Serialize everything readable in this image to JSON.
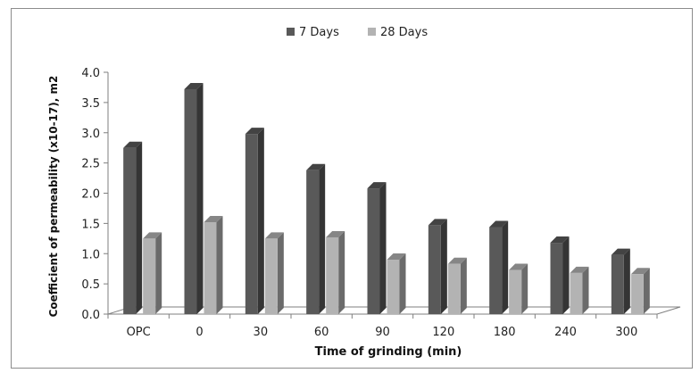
{
  "chart_data": {
    "type": "bar",
    "title": "",
    "xlabel": "Time of grinding (min)",
    "ylabel": "Coefficient of permeability (x10-17), m2",
    "categories": [
      "OPC",
      "0",
      "30",
      "60",
      "90",
      "120",
      "180",
      "240",
      "300"
    ],
    "series": [
      {
        "name": "7 Days",
        "color": "#595959",
        "values": [
          2.75,
          3.72,
          2.98,
          2.38,
          2.08,
          1.47,
          1.44,
          1.18,
          0.98
        ]
      },
      {
        "name": "28 Days",
        "color": "#b3b3b3",
        "values": [
          1.25,
          1.52,
          1.25,
          1.27,
          0.9,
          0.83,
          0.73,
          0.68,
          0.66
        ]
      }
    ],
    "ylim": [
      0,
      4
    ],
    "yticks": [
      "0.0",
      "0.5",
      "1.0",
      "1.5",
      "2.0",
      "2.5",
      "3.0",
      "3.5",
      "4.0"
    ],
    "legend_position": "top",
    "grid": false,
    "style": "3d-clustered-column"
  }
}
